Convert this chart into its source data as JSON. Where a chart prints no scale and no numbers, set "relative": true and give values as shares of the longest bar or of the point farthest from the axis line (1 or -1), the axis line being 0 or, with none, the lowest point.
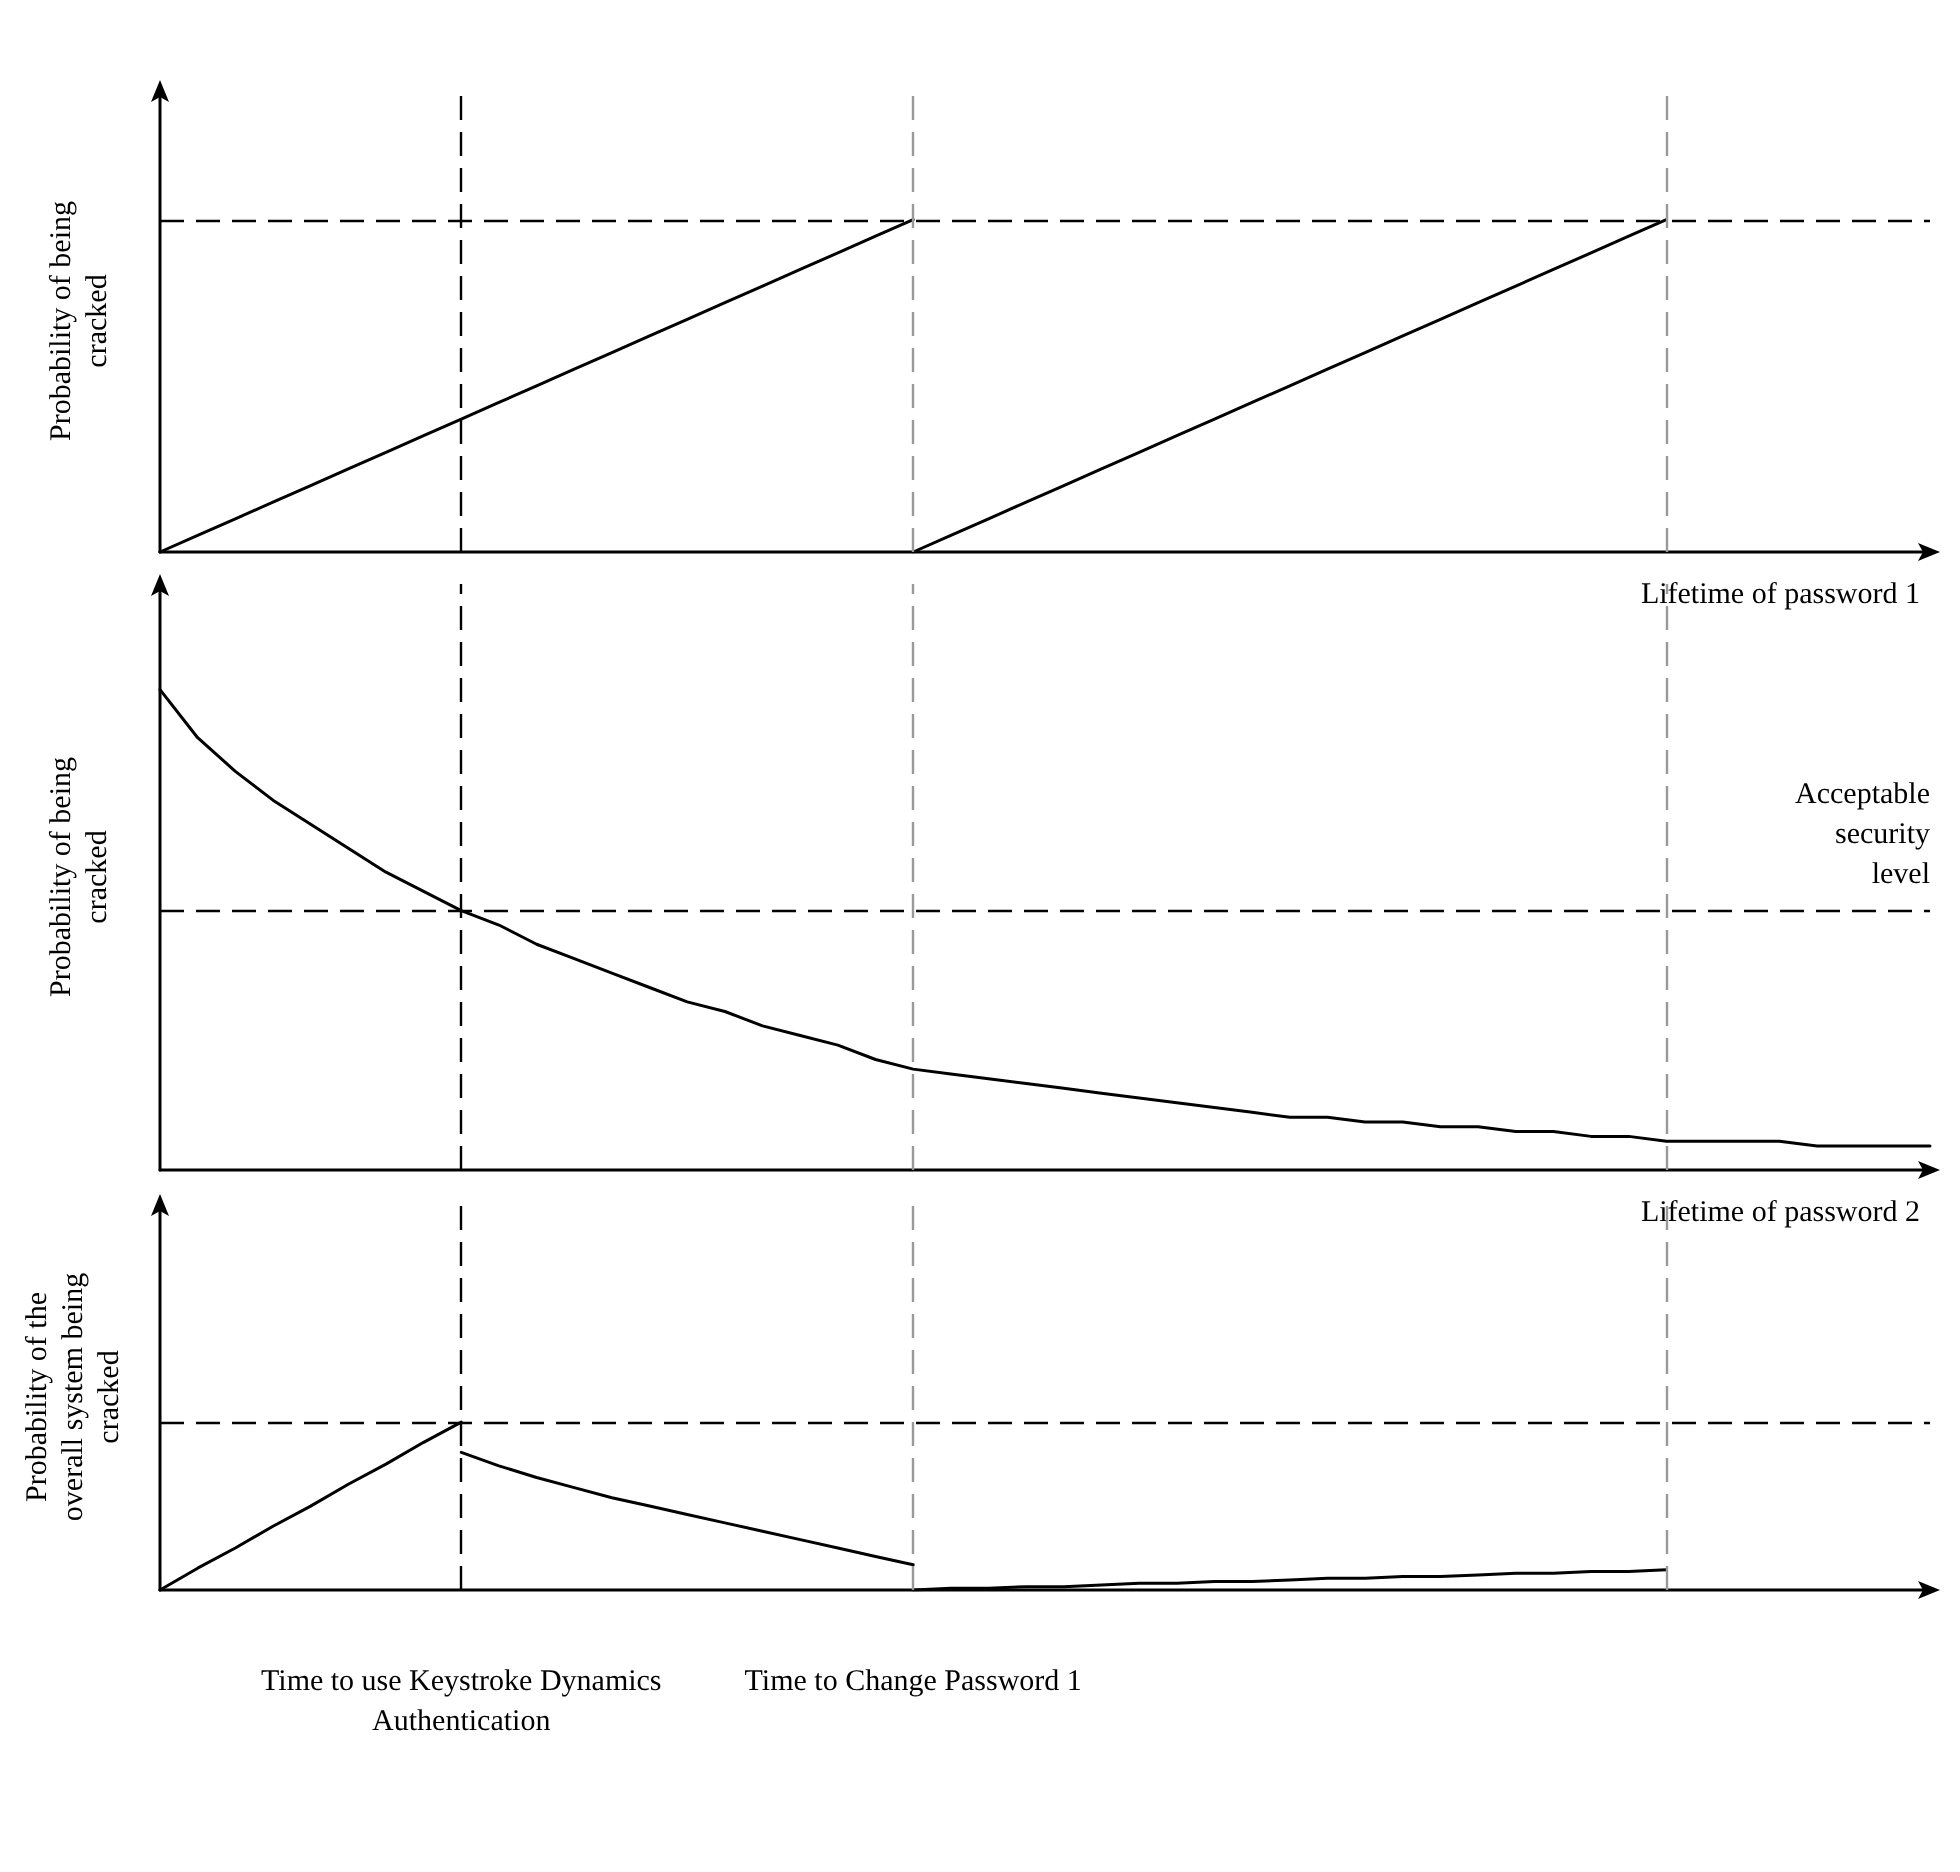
{
  "chart_data": [
    {
      "type": "line",
      "relative": true,
      "ylabel": "Probability of being cracked",
      "xlabel": "Lifetime of password 1",
      "tick_labels": false,
      "grid": false,
      "marker": "none",
      "line_style": "solid",
      "categories": [
        null,
        null,
        null,
        null,
        null,
        null,
        null,
        null,
        null,
        null,
        null,
        null,
        null,
        null,
        null,
        null,
        null,
        null,
        null,
        null,
        null,
        null,
        null,
        null,
        null,
        null,
        null,
        null,
        null,
        null,
        null,
        null,
        null,
        null,
        null,
        null,
        null,
        null,
        null,
        null,
        null,
        null,
        null,
        null,
        null,
        null,
        null,
        null
      ],
      "series": [
        {
          "color": "#000000",
          "values": [
            0,
            0.05,
            0.1,
            0.15,
            0.2,
            0.25,
            0.3,
            0.35,
            0.4,
            0.45,
            0.5,
            0.55,
            0.6,
            0.65,
            0.7,
            0.75,
            0.8,
            0.85,
            0.9,
            0.95,
            1,
            null,
            null,
            null,
            null,
            null,
            null,
            null,
            null,
            null,
            null,
            null,
            null,
            null,
            null,
            null,
            null,
            null,
            null,
            null,
            null,
            null,
            null,
            null,
            null,
            null,
            null,
            null
          ]
        },
        {
          "color": "#000000",
          "values": [
            null,
            null,
            null,
            null,
            null,
            null,
            null,
            null,
            null,
            null,
            null,
            null,
            null,
            null,
            null,
            null,
            null,
            null,
            null,
            null,
            0,
            0.05,
            0.1,
            0.15,
            0.2,
            0.25,
            0.3,
            0.35,
            0.4,
            0.45,
            0.5,
            0.55,
            0.6,
            0.65,
            0.7,
            0.75,
            0.8,
            0.85,
            0.9,
            0.95,
            1,
            null,
            null,
            null,
            null,
            null,
            null,
            null
          ]
        }
      ],
      "ref_lines": [
        {
          "axis": "y",
          "value": 1,
          "color": "#000000",
          "line_style": "dashed"
        }
      ]
    },
    {
      "type": "line",
      "relative": true,
      "ylabel": "Probability of being cracked",
      "xlabel": "Lifetime of password 2",
      "tick_labels": false,
      "grid": false,
      "marker": "none",
      "line_style": "solid",
      "categories": [
        null,
        null,
        null,
        null,
        null,
        null,
        null,
        null,
        null,
        null,
        null,
        null,
        null,
        null,
        null,
        null,
        null,
        null,
        null,
        null,
        null,
        null,
        null,
        null,
        null,
        null,
        null,
        null,
        null,
        null,
        null,
        null,
        null,
        null,
        null,
        null,
        null,
        null,
        null,
        null,
        null,
        null,
        null,
        null,
        null,
        null,
        null,
        null
      ],
      "series": [
        {
          "color": "#000000",
          "values": [
            1,
            0.9,
            0.83,
            0.77,
            0.72,
            0.67,
            0.62,
            0.58,
            0.54,
            0.51,
            0.47,
            0.44,
            0.41,
            0.38,
            0.35,
            0.33,
            0.3,
            0.28,
            0.26,
            0.23,
            0.21,
            0.2,
            0.19,
            0.18,
            0.17,
            0.16,
            0.15,
            0.14,
            0.13,
            0.12,
            0.11,
            0.11,
            0.1,
            0.1,
            0.09,
            0.09,
            0.08,
            0.08,
            0.07,
            0.07,
            0.06,
            0.06,
            0.06,
            0.06,
            0.05,
            0.05,
            0.05,
            0.05
          ]
        }
      ],
      "ref_lines": [
        {
          "axis": "y",
          "value": 0.54,
          "label": "Acceptable security level",
          "color": "#000000",
          "line_style": "dashed"
        }
      ]
    },
    {
      "type": "line",
      "relative": true,
      "ylabel": "Probability of the overall system being cracked",
      "tick_labels": "x",
      "marker": "none",
      "line_style": "solid",
      "categories": [
        null,
        null,
        null,
        null,
        null,
        null,
        null,
        null,
        "Time to use Keystroke Dynamics Authentication",
        null,
        null,
        null,
        null,
        null,
        null,
        null,
        null,
        null,
        null,
        null,
        "Time to Change Password 1",
        null,
        null,
        null,
        null,
        null,
        null,
        null,
        null,
        null,
        null,
        null,
        null,
        null,
        null,
        null,
        null,
        null,
        null,
        null,
        null,
        null,
        null,
        null,
        null,
        null,
        null,
        null
      ],
      "series": [
        {
          "color": "#000000",
          "values": [
            0,
            0.13,
            0.25,
            0.38,
            0.5,
            0.63,
            0.75,
            0.88,
            1,
            null,
            null,
            null,
            null,
            null,
            null,
            null,
            null,
            null,
            null,
            null,
            null,
            null,
            null,
            null,
            null,
            null,
            null,
            null,
            null,
            null,
            null,
            null,
            null,
            null,
            null,
            null,
            null,
            null,
            null,
            null,
            null,
            null,
            null,
            null,
            null,
            null,
            null,
            null
          ]
        },
        {
          "color": "#000000",
          "values": [
            null,
            null,
            null,
            null,
            null,
            null,
            null,
            null,
            0.82,
            0.74,
            0.67,
            0.61,
            0.55,
            0.5,
            0.45,
            0.4,
            0.35,
            0.3,
            0.25,
            0.2,
            0.15,
            null,
            null,
            null,
            null,
            null,
            null,
            null,
            null,
            null,
            null,
            null,
            null,
            null,
            null,
            null,
            null,
            null,
            null,
            null,
            null,
            null,
            null,
            null,
            null,
            null,
            null,
            null
          ]
        },
        {
          "color": "#000000",
          "values": [
            null,
            null,
            null,
            null,
            null,
            null,
            null,
            null,
            null,
            null,
            null,
            null,
            null,
            null,
            null,
            null,
            null,
            null,
            null,
            null,
            0,
            0.01,
            0.01,
            0.02,
            0.02,
            0.03,
            0.04,
            0.04,
            0.05,
            0.05,
            0.06,
            0.07,
            0.07,
            0.08,
            0.08,
            0.09,
            0.1,
            0.1,
            0.11,
            0.11,
            0.12,
            null,
            null,
            null,
            null,
            null,
            null,
            null
          ]
        }
      ],
      "ref_lines": [
        {
          "axis": "y",
          "value": 1,
          "color": "#000000",
          "line_style": "dashed"
        },
        {
          "axis": "x",
          "value": "Time to use Keystroke Dynamics Authentication",
          "color": "#000000",
          "line_style": "dashed"
        },
        {
          "axis": "x",
          "value": "Time to Change Password 1",
          "color": "#999999",
          "line_style": "dashed"
        }
      ]
    }
  ]
}
